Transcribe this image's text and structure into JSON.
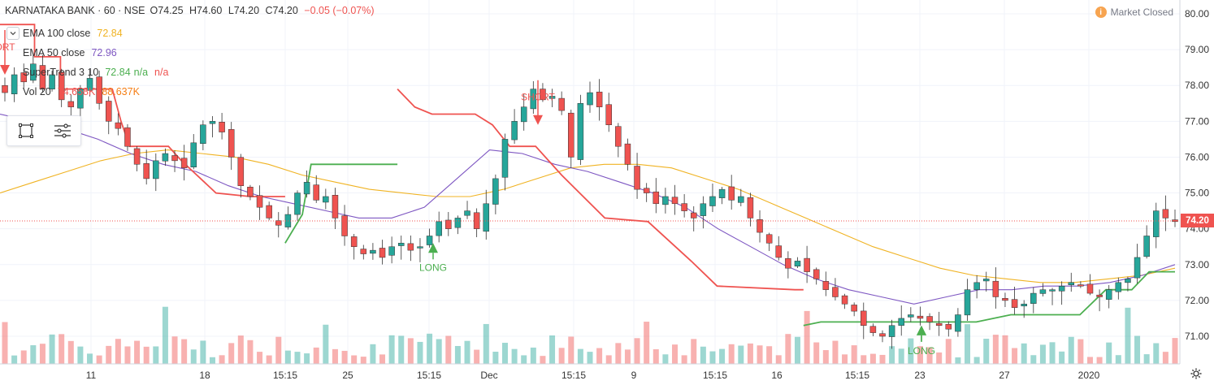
{
  "header": {
    "symbol": "KARNATAKA BANK · 60 · NSE",
    "open": "O74.25",
    "high": "H74.60",
    "low": "L74.20",
    "close": "C74.20",
    "change": "−0.05 (−0.07%)"
  },
  "indicators": [
    {
      "label": "EMA 100 close",
      "value": "72.84",
      "color": "#f0b323"
    },
    {
      "label": "EMA 50 close",
      "value": "72.96",
      "color": "#7e57c2"
    },
    {
      "label": "SuperTrend 3 10",
      "value": "72.84",
      "extra1": "n/a",
      "extra2": "n/a",
      "color": "#4caf50",
      "color2": "#ef5350"
    },
    {
      "label": "Vol 20",
      "value": "74.658K",
      "extra1": "88.637K",
      "color": "#ef5350",
      "color2": "#f57f17"
    }
  ],
  "market_status": {
    "label": "Market Closed",
    "icon": "i"
  },
  "last_price": "74.20",
  "colors": {
    "up": "#26a69a",
    "down": "#ef5350",
    "ema100": "#f0b323",
    "ema50": "#7e57c2",
    "st_up": "#4caf50",
    "st_down": "#ef5350"
  },
  "chart_data": {
    "type": "candlestick",
    "y_axis": {
      "ticks": [
        "80.00",
        "79.00",
        "78.00",
        "77.00",
        "76.00",
        "75.00",
        "74.00",
        "73.00",
        "72.00",
        "71.00"
      ],
      "range": [
        70.6,
        80.2
      ],
      "side": "right"
    },
    "x_axis": {
      "ticks": [
        "11",
        "18",
        "15:15",
        "25",
        "15:15",
        "Dec",
        "15:15",
        "9",
        "15:15",
        "16",
        "15:15",
        "23",
        "27",
        "2020"
      ]
    },
    "signals": [
      {
        "label": "ORT",
        "type": "short",
        "price": 78.3
      },
      {
        "label": "LONG",
        "type": "long",
        "price": 73.6
      },
      {
        "label": "SHORT",
        "type": "short",
        "price": 76.9
      },
      {
        "label": "LONG",
        "type": "long",
        "price": 71.3
      },
      {
        "label": "LONG",
        "type": "long",
        "price": 71.3
      }
    ],
    "close_path": [
      77.8,
      78.3,
      78.1,
      78.6,
      77.9,
      78.3,
      77.6,
      77.4,
      77.9,
      78.2,
      77.5,
      77.0,
      76.8,
      76.3,
      75.8,
      75.4,
      75.9,
      76.1,
      75.9,
      75.7,
      76.4,
      76.9,
      77.0,
      76.7,
      76.0,
      75.2,
      74.9,
      74.6,
      74.3,
      74.1,
      74.4,
      75.0,
      75.3,
      74.8,
      74.9,
      74.3,
      73.8,
      73.5,
      73.3,
      73.4,
      73.2,
      73.5,
      73.6,
      73.4,
      73.5,
      73.8,
      74.2,
      74.0,
      74.3,
      74.5,
      74.0,
      74.7,
      75.4,
      76.5,
      77.0,
      77.4,
      77.9,
      77.6,
      77.7,
      77.3,
      76.0,
      77.5,
      77.8,
      77.4,
      76.9,
      76.3,
      75.8,
      75.1,
      75.0,
      74.7,
      74.9,
      74.7,
      74.5,
      74.3,
      74.7,
      74.9,
      75.1,
      74.8,
      74.9,
      74.3,
      73.9,
      73.6,
      73.2,
      72.9,
      73.1,
      72.8,
      72.6,
      72.3,
      72.1,
      71.9,
      71.7,
      71.3,
      71.1,
      71.0,
      71.3,
      71.5,
      71.6,
      71.5,
      71.4,
      71.3,
      71.2,
      71.6,
      72.3,
      72.5,
      72.6,
      72.1,
      72.0,
      71.8,
      71.9,
      72.2,
      72.3,
      72.3,
      72.4,
      72.5,
      72.4,
      72.2,
      72.1,
      72.3,
      72.5,
      72.6,
      73.2,
      73.8,
      74.5,
      74.3,
      74.2
    ],
    "close_start_index": 0,
    "ema100_path": [
      75.0,
      75.3,
      75.6,
      75.9,
      76.1,
      76.2,
      76.1,
      76.0,
      75.8,
      75.5,
      75.3,
      75.1,
      75.0,
      74.9,
      74.9,
      75.1,
      75.4,
      75.7,
      75.8,
      75.8,
      75.7,
      75.4,
      75.1,
      74.7,
      74.3,
      73.9,
      73.5,
      73.2,
      72.9,
      72.7,
      72.6,
      72.5,
      72.5,
      72.6,
      72.7,
      72.9
    ],
    "ema50_path": [
      77.2,
      77.0,
      76.8,
      76.5,
      76.1,
      75.8,
      75.6,
      75.2,
      74.9,
      74.7,
      74.5,
      74.3,
      74.3,
      74.6,
      75.4,
      76.2,
      76.1,
      75.8,
      75.6,
      75.3,
      75.0,
      74.6,
      74.0,
      73.5,
      73.0,
      72.6,
      72.3,
      72.1,
      71.9,
      72.1,
      72.3,
      72.3,
      72.4,
      72.4,
      72.5,
      72.7,
      73.0
    ],
    "supertrend_segments": [
      {
        "dir": "down",
        "points": [
          [
            0,
            79.7
          ],
          [
            8,
            79.7
          ],
          [
            8,
            78.8
          ],
          [
            14,
            78.8
          ],
          [
            14,
            77.9
          ],
          [
            26,
            77.9
          ],
          [
            28,
            77.0
          ],
          [
            30,
            76.3
          ],
          [
            33,
            76.3
          ],
          [
            39,
            76.3
          ],
          [
            42,
            75.9
          ],
          [
            50,
            75.0
          ],
          [
            58,
            74.9
          ],
          [
            66,
            74.9
          ]
        ]
      },
      {
        "dir": "up",
        "points": [
          [
            66,
            73.6
          ],
          [
            70,
            74.4
          ],
          [
            72,
            75.8
          ],
          [
            76,
            75.8
          ],
          [
            80,
            75.8
          ],
          [
            88,
            75.8
          ],
          [
            92,
            75.8
          ]
        ]
      },
      {
        "dir": "down",
        "points": [
          [
            92,
            77.9
          ],
          [
            96,
            77.4
          ],
          [
            100,
            77.2
          ],
          [
            110,
            77.2
          ],
          [
            114,
            76.9
          ],
          [
            118,
            76.3
          ],
          [
            124,
            76.3
          ],
          [
            130,
            75.5
          ],
          [
            140,
            74.3
          ],
          [
            150,
            74.2
          ],
          [
            160,
            73.1
          ],
          [
            166,
            72.4
          ],
          [
            184,
            72.3
          ],
          [
            186,
            72.3
          ]
        ]
      },
      {
        "dir": "up",
        "points": [
          [
            186,
            71.3
          ],
          [
            190,
            71.4
          ],
          [
            200,
            71.4
          ],
          [
            226,
            71.4
          ],
          [
            234,
            71.6
          ],
          [
            250,
            71.6
          ],
          [
            256,
            72.3
          ],
          [
            262,
            72.3
          ],
          [
            266,
            72.8
          ],
          [
            272,
            72.8
          ]
        ]
      }
    ],
    "volume": {
      "note": "volume histogram at bottom, values in shares",
      "peak": "~1.6M"
    },
    "legend": "top-left",
    "grid": true
  }
}
